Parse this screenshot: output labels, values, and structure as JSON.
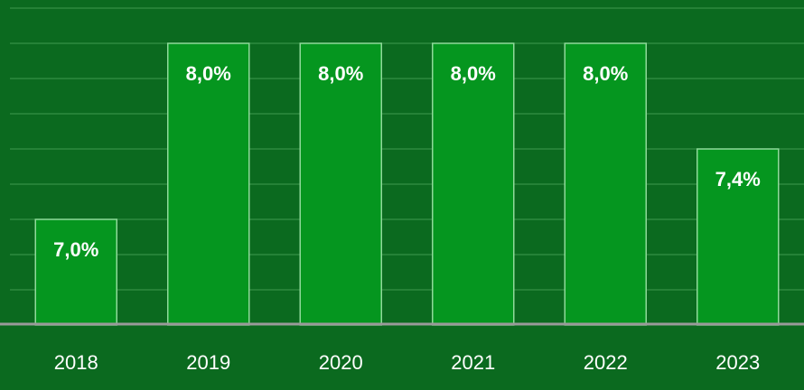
{
  "chart_data": {
    "type": "bar",
    "categories": [
      "2018",
      "2019",
      "2020",
      "2021",
      "2022",
      "2023"
    ],
    "values": [
      7.0,
      8.0,
      8.0,
      8.0,
      8.0,
      7.4
    ],
    "value_labels": [
      "7,0%",
      "8,0%",
      "8,0%",
      "8,0%",
      "8,0%",
      "7,4%"
    ],
    "color": "#05961f",
    "ylim": [
      6.4,
      8.2
    ],
    "yticks": [
      6.4,
      6.6,
      6.8,
      7.0,
      7.2,
      7.4,
      7.6,
      7.8,
      8.0,
      8.2
    ],
    "grid": true
  }
}
